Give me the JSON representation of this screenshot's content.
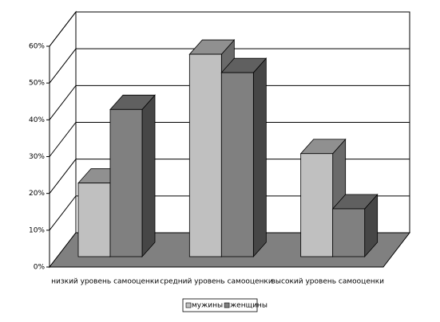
{
  "chart_data": {
    "type": "bar3d",
    "categories": [
      "низкий уровень самооценки",
      "средний уровень самооценки",
      "высокий уровень самооценки"
    ],
    "series": [
      {
        "name": "мужины",
        "color": "#c0c0c0",
        "values": [
          20,
          55,
          28
        ]
      },
      {
        "name": "женщины",
        "color": "#808080",
        "values": [
          40,
          50,
          13
        ]
      }
    ],
    "ylim": [
      0,
      60
    ],
    "yticks": [
      {
        "value": 0,
        "label": "0%"
      },
      {
        "value": 10,
        "label": "10%"
      },
      {
        "value": 20,
        "label": "20%"
      },
      {
        "value": 30,
        "label": "30%"
      },
      {
        "value": 40,
        "label": "40%"
      },
      {
        "value": 50,
        "label": "50%"
      },
      {
        "value": 60,
        "label": "60%"
      }
    ],
    "grid": true,
    "floor_color": "#808080",
    "legend": "bottom"
  }
}
